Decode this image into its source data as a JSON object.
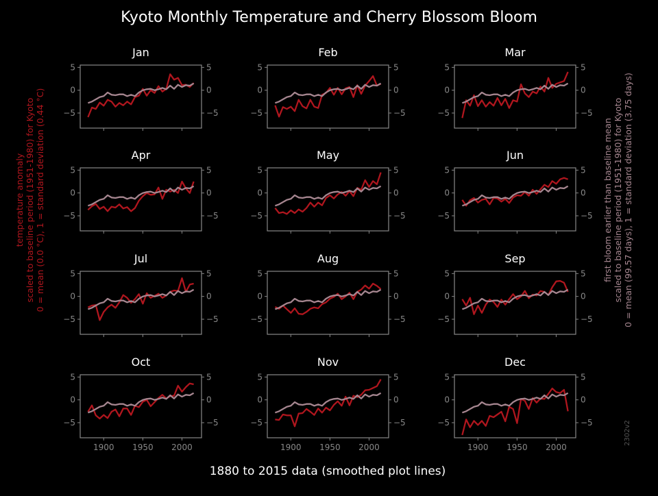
{
  "title": "Kyoto Monthly Temperature and Cherry Blossom Bloom",
  "xlabel": "1880 to 2015 data (smoothed plot lines)",
  "ylabel_left": [
    "temperature anomaly",
    "scaled to baseline period (1951-1980) for Kyoto",
    "0 = mean (0.0 °C), 1 = standard deviation (0.44 °C)"
  ],
  "ylabel_right": [
    "first bloom earlier than baseline mean",
    "scaled to baseline period (1951-1980) for Kyoto",
    "0 = mean (99.57 days), 1 = standard deviation (3.75 days)"
  ],
  "version": "2302v2",
  "colors": {
    "background": "#000000",
    "temperature": "#b0161e",
    "bloom": "#a68690",
    "axes": "#888888",
    "text": "#ffffff"
  },
  "chart_data": {
    "type": "line",
    "x_range": [
      1880,
      2015
    ],
    "xlim": [
      1870,
      2025
    ],
    "ylim": [
      -8.3,
      5.5
    ],
    "yticks": [
      -5,
      0,
      5
    ],
    "xticks": [
      1900,
      1950,
      2000
    ],
    "grid": false,
    "bloom": {
      "x": [
        1880,
        1885,
        1890,
        1895,
        1900,
        1905,
        1910,
        1915,
        1920,
        1925,
        1930,
        1935,
        1940,
        1945,
        1950,
        1955,
        1960,
        1965,
        1970,
        1975,
        1980,
        1985,
        1990,
        1995,
        2000,
        2005,
        2010,
        2015
      ],
      "y": [
        -2.8,
        -2.5,
        -2.0,
        -1.5,
        -1.3,
        -0.5,
        -1.0,
        -1.1,
        -0.9,
        -0.9,
        -1.3,
        -1.0,
        -1.3,
        -0.5,
        0.0,
        0.2,
        0.3,
        0.0,
        0.2,
        0.5,
        0.2,
        1.0,
        0.3,
        1.2,
        0.7,
        1.1,
        1.0,
        1.5
      ]
    },
    "panels": [
      {
        "month": "Jan",
        "x": [
          1880,
          1885,
          1890,
          1895,
          1900,
          1905,
          1910,
          1915,
          1920,
          1925,
          1930,
          1935,
          1940,
          1945,
          1950,
          1955,
          1960,
          1965,
          1970,
          1975,
          1980,
          1985,
          1990,
          1995,
          2000,
          2005,
          2010,
          2015
        ],
        "y": [
          -5.9,
          -3.8,
          -4.1,
          -2.7,
          -3.4,
          -2.1,
          -2.5,
          -3.6,
          -2.8,
          -3.3,
          -2.5,
          -3.1,
          -1.5,
          -1.2,
          0.3,
          -1.2,
          0.0,
          -0.6,
          0.9,
          -0.3,
          0.3,
          3.5,
          2.3,
          2.7,
          1.1,
          1.2,
          0.7,
          1.6
        ]
      },
      {
        "month": "Feb",
        "x": [
          1880,
          1885,
          1890,
          1895,
          1900,
          1905,
          1910,
          1915,
          1920,
          1925,
          1930,
          1935,
          1940,
          1945,
          1950,
          1955,
          1960,
          1965,
          1970,
          1975,
          1980,
          1985,
          1990,
          1995,
          2000,
          2005,
          2010,
          2015
        ],
        "y": [
          -3.3,
          -5.8,
          -3.7,
          -4.1,
          -3.6,
          -4.6,
          -2.1,
          -3.5,
          -4.0,
          -2.1,
          -3.6,
          -3.9,
          -1.0,
          -0.6,
          0.5,
          -1.0,
          0.5,
          -0.9,
          0.4,
          0.7,
          -1.5,
          1.1,
          -0.8,
          1.0,
          2.0,
          3.1,
          1.0,
          1.4
        ]
      },
      {
        "month": "Mar",
        "x": [
          1880,
          1885,
          1890,
          1895,
          1900,
          1905,
          1910,
          1915,
          1920,
          1925,
          1930,
          1935,
          1940,
          1945,
          1950,
          1955,
          1960,
          1965,
          1970,
          1975,
          1980,
          1985,
          1990,
          1995,
          2000,
          2005,
          2010,
          2015
        ],
        "y": [
          -6.1,
          -2.2,
          -3.4,
          -1.1,
          -3.5,
          -2.2,
          -3.6,
          -2.6,
          -3.4,
          -1.7,
          -3.3,
          -1.9,
          -3.9,
          -2.2,
          -2.5,
          1.3,
          -0.7,
          -1.5,
          -0.3,
          -0.7,
          0.8,
          -0.3,
          2.7,
          0.5,
          1.4,
          1.7,
          2.0,
          4.0
        ]
      },
      {
        "month": "Apr",
        "x": [
          1880,
          1885,
          1890,
          1895,
          1900,
          1905,
          1910,
          1915,
          1920,
          1925,
          1930,
          1935,
          1940,
          1945,
          1950,
          1955,
          1960,
          1965,
          1970,
          1975,
          1980,
          1985,
          1990,
          1995,
          2000,
          2005,
          2010,
          2015
        ],
        "y": [
          -3.7,
          -2.9,
          -2.4,
          -3.5,
          -3.0,
          -4.0,
          -3.0,
          -3.2,
          -2.5,
          -3.4,
          -3.1,
          -4.0,
          -3.3,
          -1.7,
          -0.7,
          0.0,
          -0.4,
          -0.3,
          1.2,
          -1.3,
          0.7,
          0.3,
          0.7,
          0.0,
          2.5,
          1.0,
          0.0,
          2.5
        ]
      },
      {
        "month": "May",
        "x": [
          1880,
          1885,
          1890,
          1895,
          1900,
          1905,
          1910,
          1915,
          1920,
          1925,
          1930,
          1935,
          1940,
          1945,
          1950,
          1955,
          1960,
          1965,
          1970,
          1975,
          1980,
          1985,
          1990,
          1995,
          2000,
          2005,
          2010,
          2015
        ],
        "y": [
          -3.3,
          -4.4,
          -4.2,
          -4.6,
          -3.8,
          -4.4,
          -3.6,
          -4.1,
          -3.3,
          -2.1,
          -3.0,
          -2.1,
          -2.7,
          -1.1,
          -0.5,
          -1.2,
          -0.3,
          0.2,
          -0.6,
          0.4,
          -0.7,
          1.1,
          0.7,
          2.8,
          1.3,
          2.6,
          1.9,
          4.5
        ]
      },
      {
        "month": "Jun",
        "x": [
          1880,
          1885,
          1890,
          1895,
          1900,
          1905,
          1910,
          1915,
          1920,
          1925,
          1930,
          1935,
          1940,
          1945,
          1950,
          1955,
          1960,
          1965,
          1970,
          1975,
          1980,
          1985,
          1990,
          1995,
          2000,
          2005,
          2010,
          2015
        ],
        "y": [
          -1.5,
          -2.8,
          -1.6,
          -1.1,
          -2.1,
          -1.5,
          -1.3,
          -2.5,
          -1.1,
          -1.2,
          -1.9,
          -1.3,
          -2.2,
          -1.0,
          -0.5,
          -0.6,
          0.2,
          -0.6,
          0.7,
          -0.2,
          0.8,
          1.8,
          1.3,
          2.6,
          2.0,
          3.0,
          3.3,
          3.0
        ]
      },
      {
        "month": "Jul",
        "x": [
          1880,
          1885,
          1890,
          1895,
          1900,
          1905,
          1910,
          1915,
          1920,
          1925,
          1930,
          1935,
          1940,
          1945,
          1950,
          1955,
          1960,
          1965,
          1970,
          1975,
          1980,
          1985,
          1990,
          1995,
          2000,
          2005,
          2010,
          2015
        ],
        "y": [
          -2.4,
          -2.0,
          -1.9,
          -5.2,
          -3.4,
          -2.4,
          -1.8,
          -2.5,
          -1.3,
          0.3,
          -0.3,
          -1.4,
          -0.6,
          0.5,
          -1.6,
          0.7,
          -0.3,
          0.1,
          0.6,
          -0.3,
          0.2,
          1.0,
          1.3,
          1.2,
          4.0,
          1.0,
          2.6,
          2.8
        ]
      },
      {
        "month": "Aug",
        "x": [
          1880,
          1885,
          1890,
          1895,
          1900,
          1905,
          1910,
          1915,
          1920,
          1925,
          1930,
          1935,
          1940,
          1945,
          1950,
          1955,
          1960,
          1965,
          1970,
          1975,
          1980,
          1985,
          1990,
          1995,
          2000,
          2005,
          2010,
          2015
        ],
        "y": [
          -2.3,
          -2.7,
          -2.0,
          -2.8,
          -3.6,
          -2.6,
          -3.8,
          -3.9,
          -3.4,
          -2.7,
          -2.4,
          -2.6,
          -1.7,
          -1.3,
          -0.5,
          -0.1,
          0.6,
          -0.6,
          0.0,
          0.8,
          -0.6,
          1.0,
          1.5,
          2.4,
          1.7,
          2.8,
          2.3,
          1.6
        ]
      },
      {
        "month": "Sep",
        "x": [
          1880,
          1885,
          1890,
          1895,
          1900,
          1905,
          1910,
          1915,
          1920,
          1925,
          1930,
          1935,
          1940,
          1945,
          1950,
          1955,
          1960,
          1965,
          1970,
          1975,
          1980,
          1985,
          1990,
          1995,
          2000,
          2005,
          2010,
          2015
        ],
        "y": [
          -0.6,
          -2.0,
          -0.3,
          -3.9,
          -2.0,
          -3.6,
          -1.8,
          -0.7,
          -1.2,
          -2.3,
          -0.7,
          -1.8,
          -0.6,
          0.5,
          -0.6,
          0.0,
          1.2,
          -0.4,
          0.4,
          0.2,
          1.2,
          1.0,
          0.3,
          2.0,
          3.3,
          3.4,
          3.0,
          1.0
        ]
      },
      {
        "month": "Oct",
        "x": [
          1880,
          1885,
          1890,
          1895,
          1900,
          1905,
          1910,
          1915,
          1920,
          1925,
          1930,
          1935,
          1940,
          1945,
          1950,
          1955,
          1960,
          1965,
          1970,
          1975,
          1980,
          1985,
          1990,
          1995,
          2000,
          2005,
          2010,
          2015
        ],
        "y": [
          -2.6,
          -1.2,
          -3.4,
          -4.1,
          -3.3,
          -4.0,
          -2.6,
          -2.1,
          -3.6,
          -1.9,
          -1.9,
          -3.3,
          -1.3,
          -1.6,
          -0.4,
          0.0,
          -1.4,
          -0.5,
          0.4,
          1.1,
          0.3,
          0.8,
          0.9,
          3.1,
          1.8,
          2.8,
          3.6,
          3.4
        ]
      },
      {
        "month": "Nov",
        "x": [
          1880,
          1885,
          1890,
          1895,
          1900,
          1905,
          1910,
          1915,
          1920,
          1925,
          1930,
          1935,
          1940,
          1945,
          1950,
          1955,
          1960,
          1965,
          1970,
          1975,
          1980,
          1985,
          1990,
          1995,
          2000,
          2005,
          2010,
          2015
        ],
        "y": [
          -4.3,
          -4.4,
          -3.2,
          -3.4,
          -3.4,
          -5.8,
          -3.0,
          -2.9,
          -2.0,
          -2.6,
          -3.3,
          -1.9,
          -2.8,
          -1.7,
          -2.3,
          -1.1,
          -0.3,
          -1.3,
          0.7,
          -1.2,
          0.9,
          0.6,
          1.1,
          2.1,
          2.2,
          2.6,
          3.0,
          4.5
        ]
      },
      {
        "month": "Dec",
        "x": [
          1880,
          1885,
          1890,
          1895,
          1900,
          1905,
          1910,
          1915,
          1920,
          1925,
          1930,
          1935,
          1940,
          1945,
          1950,
          1955,
          1960,
          1965,
          1970,
          1975,
          1980,
          1985,
          1990,
          1995,
          2000,
          2005,
          2010,
          2015
        ],
        "y": [
          -7.7,
          -4.3,
          -6.0,
          -4.6,
          -5.5,
          -4.6,
          -5.7,
          -3.5,
          -3.8,
          -3.2,
          -2.6,
          -4.7,
          -1.5,
          -2.0,
          -5.1,
          0.2,
          -0.2,
          -2.0,
          0.4,
          -0.6,
          0.3,
          0.2,
          1.3,
          2.5,
          1.7,
          1.5,
          2.2,
          -2.5
        ]
      }
    ]
  }
}
